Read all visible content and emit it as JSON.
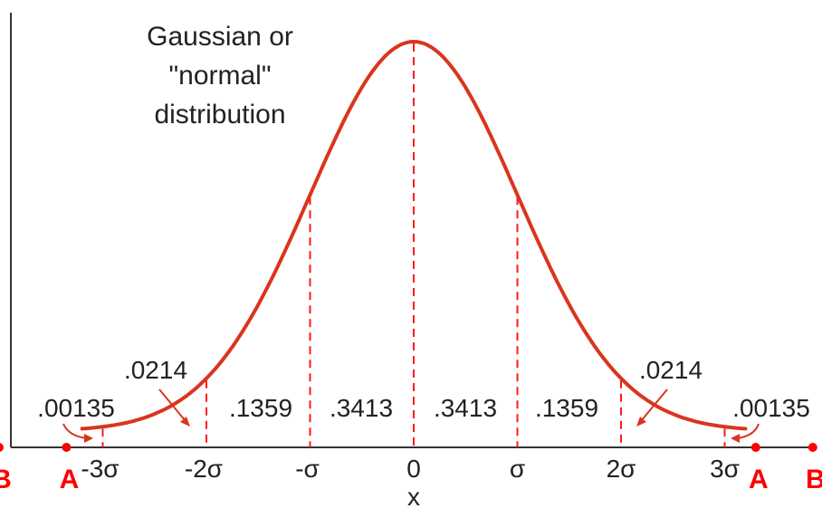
{
  "chart_data": {
    "type": "line",
    "title_lines": [
      "Gaussian or",
      "\"normal\"",
      "distribution"
    ],
    "xlabel": "x",
    "ylabel": "",
    "x_ticks": [
      {
        "sigma": -3,
        "label": "-3σ"
      },
      {
        "sigma": -2,
        "label": "-2σ"
      },
      {
        "sigma": -1,
        "label": "-σ"
      },
      {
        "sigma": 0,
        "label": "0"
      },
      {
        "sigma": 1,
        "label": "σ"
      },
      {
        "sigma": 2,
        "label": "2σ"
      },
      {
        "sigma": 3,
        "label": "3σ"
      }
    ],
    "series": [
      {
        "function": "gaussian",
        "mean": 0,
        "sd": 1,
        "x_range": [
          -3.2,
          3.2
        ],
        "color": "#d9351e"
      }
    ],
    "area_labels": [
      {
        "text": ".00135",
        "region": [
          -4,
          -3
        ]
      },
      {
        "text": ".0214",
        "region": [
          -3,
          -2
        ]
      },
      {
        "text": ".1359",
        "region": [
          -2,
          -1
        ]
      },
      {
        "text": ".3413",
        "region": [
          -1,
          0
        ]
      },
      {
        "text": ".3413",
        "region": [
          0,
          1
        ]
      },
      {
        "text": ".1359",
        "region": [
          1,
          2
        ]
      },
      {
        "text": ".0214",
        "region": [
          2,
          3
        ]
      },
      {
        "text": ".00135",
        "region": [
          3,
          4
        ]
      }
    ],
    "point_markers": [
      {
        "label": "B",
        "x_sigma": -4.0
      },
      {
        "label": "A",
        "x_sigma": -3.35
      },
      {
        "label": "A",
        "x_sigma": 3.3
      },
      {
        "label": "B",
        "x_sigma": 3.85
      }
    ],
    "marker_color": "#ff0000",
    "divider_color": "#ff1a1a",
    "grid": false,
    "legend": "none"
  }
}
